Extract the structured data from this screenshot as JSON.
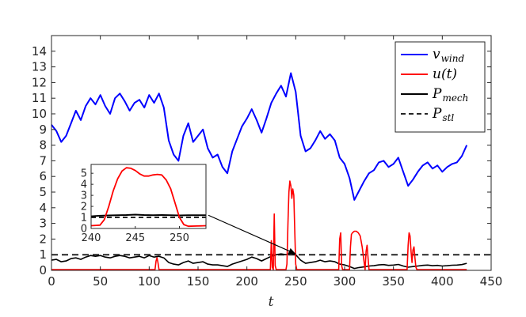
{
  "chart_data": [
    {
      "type": "line",
      "xlabel": "t",
      "ylabel": "",
      "xlim": [
        0,
        450
      ],
      "ylim": [
        0,
        15
      ],
      "xticks": [
        "0",
        "50",
        "100",
        "150",
        "200",
        "250",
        "300",
        "350",
        "400",
        "450"
      ],
      "yticks": [
        "0",
        "1",
        "2",
        "3",
        "4",
        "5",
        "6",
        "7",
        "8",
        "9",
        "10",
        "11",
        "12",
        "13",
        "14"
      ],
      "grid": false,
      "legend_position": "top-right",
      "series": [
        {
          "name": "v_wind",
          "color": "#0000ff",
          "style": "solid",
          "x": [
            0,
            5,
            10,
            15,
            20,
            25,
            30,
            35,
            40,
            45,
            50,
            55,
            60,
            65,
            70,
            75,
            80,
            85,
            90,
            95,
            100,
            105,
            110,
            115,
            120,
            125,
            130,
            135,
            140,
            145,
            150,
            155,
            160,
            165,
            170,
            175,
            180,
            185,
            190,
            195,
            200,
            205,
            210,
            215,
            220,
            225,
            230,
            235,
            240,
            245,
            250,
            255,
            260,
            265,
            270,
            275,
            280,
            285,
            290,
            295,
            300,
            305,
            310,
            315,
            320,
            325,
            330,
            335,
            340,
            345,
            350,
            355,
            360,
            365,
            370,
            375,
            380,
            385,
            390,
            395,
            400,
            405,
            410,
            415,
            420,
            425
          ],
          "values": [
            9.3,
            8.9,
            8.2,
            8.6,
            9.4,
            10.2,
            9.6,
            10.5,
            11.0,
            10.6,
            11.2,
            10.5,
            10.0,
            11.0,
            11.3,
            10.8,
            10.2,
            10.7,
            10.9,
            10.4,
            11.2,
            10.7,
            11.3,
            10.4,
            8.3,
            7.4,
            7.0,
            8.6,
            9.4,
            8.2,
            8.6,
            9.0,
            7.8,
            7.2,
            7.4,
            6.6,
            6.2,
            7.6,
            8.4,
            9.2,
            9.7,
            10.3,
            9.6,
            8.8,
            9.7,
            10.7,
            11.3,
            11.8,
            11.1,
            12.6,
            11.4,
            8.6,
            7.6,
            7.8,
            8.3,
            8.9,
            8.4,
            8.7,
            8.3,
            7.2,
            6.8,
            5.9,
            4.5,
            5.1,
            5.7,
            6.2,
            6.4,
            6.9,
            7.0,
            6.6,
            6.8,
            7.2,
            6.3,
            5.4,
            5.8,
            6.3,
            6.7,
            6.9,
            6.5,
            6.7,
            6.3,
            6.6,
            6.8,
            6.9,
            7.3,
            8.0
          ]
        },
        {
          "name": "u(t)",
          "color": "#ff0000",
          "style": "solid",
          "x": [
            0,
            106,
            107,
            108,
            109,
            110,
            224,
            225,
            226,
            227,
            228,
            229,
            230,
            240,
            241,
            242,
            243,
            244,
            245,
            246,
            247,
            248,
            249,
            250,
            251,
            252,
            253,
            294,
            295,
            296,
            297,
            298,
            299,
            305,
            306,
            307,
            308,
            310,
            312,
            314,
            316,
            318,
            320,
            321,
            322,
            323,
            324,
            325,
            326,
            364,
            365,
            366,
            367,
            368,
            369,
            370,
            371,
            372,
            373,
            374,
            375,
            425
          ],
          "values": [
            0.05,
            0.05,
            0.6,
            0.8,
            0.5,
            0.05,
            0.05,
            1.9,
            0.2,
            0.05,
            3.6,
            0.3,
            0.05,
            0.05,
            0.4,
            3.0,
            5.0,
            5.7,
            5.4,
            4.6,
            5.2,
            4.8,
            2.5,
            0.4,
            0.05,
            0.05,
            0.05,
            0.05,
            2.0,
            2.4,
            0.3,
            0.05,
            0.05,
            0.05,
            1.5,
            2.3,
            2.4,
            2.5,
            2.5,
            2.4,
            2.2,
            1.5,
            0.5,
            0.05,
            1.2,
            1.6,
            0.8,
            0.05,
            0.05,
            0.05,
            1.6,
            2.4,
            2.2,
            1.2,
            0.5,
            1.3,
            1.5,
            0.8,
            0.2,
            0.05,
            0.05,
            0.05
          ]
        },
        {
          "name": "P_mech",
          "color": "#000000",
          "style": "solid",
          "x": [
            0,
            5,
            10,
            15,
            20,
            25,
            30,
            35,
            40,
            45,
            50,
            55,
            60,
            65,
            70,
            75,
            80,
            85,
            90,
            95,
            100,
            105,
            110,
            115,
            120,
            125,
            130,
            135,
            140,
            145,
            150,
            155,
            160,
            165,
            170,
            175,
            180,
            185,
            190,
            195,
            200,
            205,
            210,
            215,
            220,
            225,
            230,
            235,
            240,
            245,
            250,
            255,
            260,
            265,
            270,
            275,
            280,
            285,
            290,
            295,
            300,
            305,
            310,
            315,
            320,
            325,
            330,
            335,
            340,
            345,
            350,
            355,
            360,
            365,
            370,
            375,
            380,
            385,
            390,
            395,
            400,
            405,
            410,
            415,
            420,
            425
          ],
          "values": [
            0.65,
            0.7,
            0.55,
            0.6,
            0.75,
            0.8,
            0.7,
            0.85,
            0.95,
            0.9,
            0.95,
            0.85,
            0.8,
            0.9,
            0.95,
            0.9,
            0.8,
            0.85,
            0.9,
            0.8,
            0.95,
            0.85,
            0.9,
            0.8,
            0.5,
            0.4,
            0.35,
            0.5,
            0.6,
            0.45,
            0.5,
            0.55,
            0.4,
            0.35,
            0.35,
            0.3,
            0.25,
            0.4,
            0.5,
            0.6,
            0.7,
            0.85,
            0.75,
            0.6,
            0.75,
            0.9,
            1.0,
            1.05,
            1.0,
            1.1,
            1.0,
            0.65,
            0.45,
            0.5,
            0.55,
            0.65,
            0.55,
            0.6,
            0.55,
            0.4,
            0.35,
            0.25,
            0.12,
            0.18,
            0.22,
            0.28,
            0.3,
            0.35,
            0.37,
            0.32,
            0.34,
            0.38,
            0.28,
            0.2,
            0.24,
            0.28,
            0.32,
            0.34,
            0.3,
            0.32,
            0.28,
            0.3,
            0.33,
            0.34,
            0.37,
            0.45
          ]
        },
        {
          "name": "P_stl",
          "color": "#262626",
          "style": "dashed",
          "x": [
            0,
            450
          ],
          "values": [
            1.0,
            1.0
          ]
        }
      ],
      "legend": [
        {
          "base": "v",
          "sub": "wind",
          "color": "#0000ff",
          "dashed": false
        },
        {
          "base": "u(t)",
          "sub": "",
          "color": "#ff0000",
          "dashed": false
        },
        {
          "base": "P",
          "sub": "mech",
          "color": "#000000",
          "dashed": false
        },
        {
          "base": "P",
          "sub": "stl",
          "color": "#262626",
          "dashed": true
        }
      ],
      "annotation": {
        "type": "arrow",
        "from": [
          300,
          3.3
        ],
        "to": [
          250,
          1.05
        ]
      }
    },
    {
      "type": "line",
      "role": "inset",
      "xlim": [
        240,
        253
      ],
      "ylim": [
        0,
        5.8
      ],
      "xticks": [
        "240",
        "245",
        "250"
      ],
      "yticks": [
        "0",
        "1",
        "2",
        "3",
        "4",
        "5"
      ],
      "series": [
        {
          "name": "u(t)",
          "color": "#ff0000",
          "style": "solid",
          "x": [
            240,
            241,
            241.5,
            242,
            242.5,
            243,
            243.5,
            244,
            244.5,
            245,
            245.5,
            246,
            246.5,
            247,
            247.5,
            248,
            248.5,
            249,
            249.5,
            250,
            250.5,
            251,
            252,
            253
          ],
          "values": [
            0.25,
            0.3,
            0.8,
            2.0,
            3.4,
            4.5,
            5.2,
            5.5,
            5.45,
            5.25,
            4.95,
            4.75,
            4.75,
            4.85,
            4.9,
            4.85,
            4.4,
            3.6,
            2.3,
            1.0,
            0.35,
            0.2,
            0.22,
            0.25
          ]
        },
        {
          "name": "P_mech",
          "color": "#000000",
          "style": "solid",
          "x": [
            240,
            241,
            242,
            243,
            244,
            245,
            246,
            247,
            248,
            249,
            250,
            251,
            252,
            253
          ],
          "values": [
            1.1,
            1.15,
            1.18,
            1.2,
            1.22,
            1.25,
            1.22,
            1.2,
            1.22,
            1.2,
            1.18,
            1.2,
            1.2,
            1.2
          ]
        },
        {
          "name": "P_stl",
          "color": "#262626",
          "style": "dashed",
          "x": [
            240,
            253
          ],
          "values": [
            1.0,
            1.0
          ]
        }
      ]
    }
  ]
}
